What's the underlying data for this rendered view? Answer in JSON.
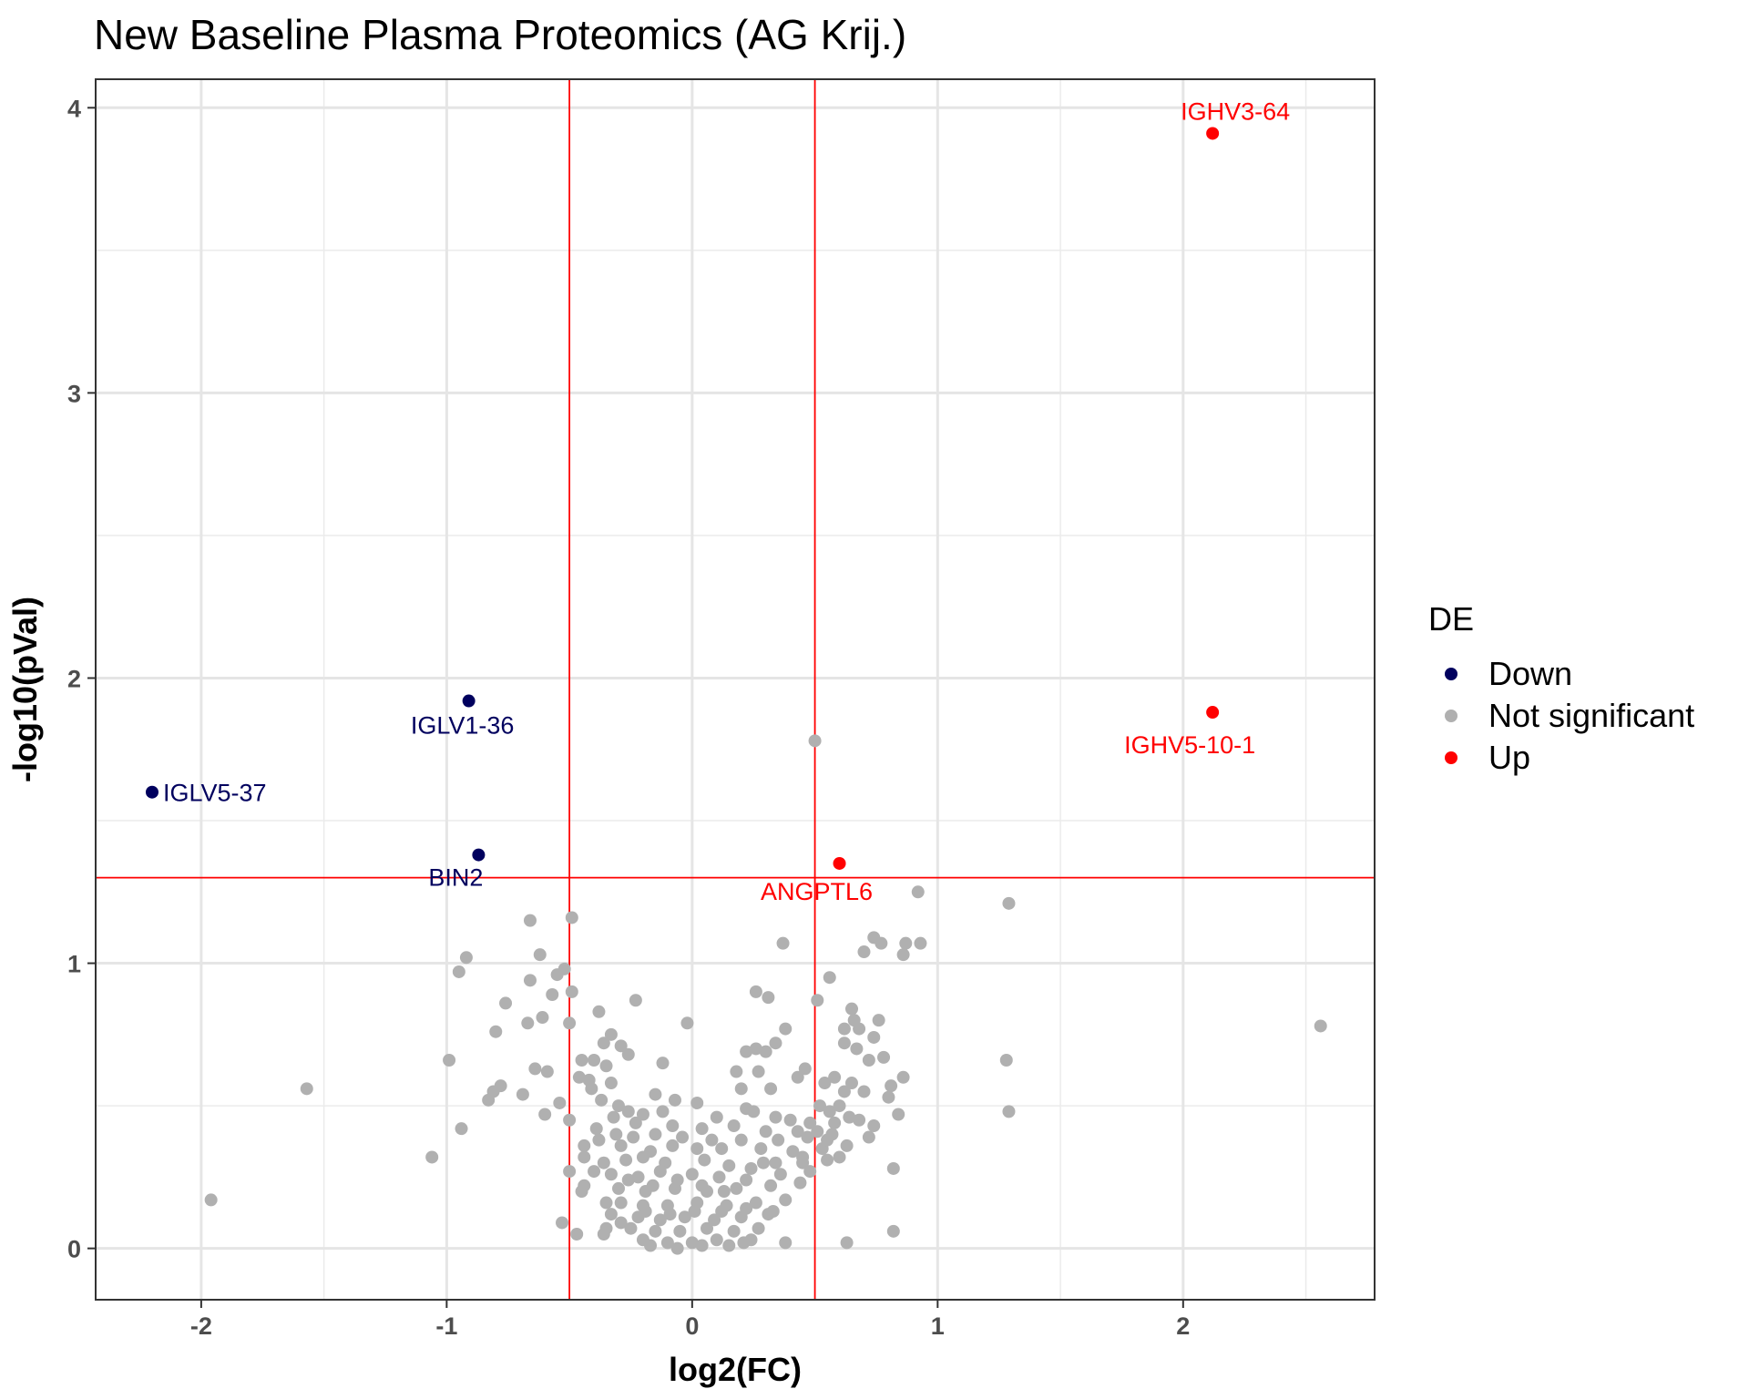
{
  "chart_data": {
    "type": "scatter",
    "title": "New Baseline Plasma Proteomics (AG Krij.)",
    "xlabel": "log2(FC)",
    "ylabel": "-log10(pVal)",
    "xlim": [
      -2.43,
      2.78
    ],
    "ylim": [
      -0.18,
      4.1
    ],
    "x_ticks": [
      -2,
      -1,
      0,
      1,
      2
    ],
    "y_ticks": [
      0,
      1,
      2,
      3,
      4
    ],
    "x_tick_labels": [
      "-2",
      "-1",
      "0",
      "1",
      "2"
    ],
    "y_tick_labels": [
      "0",
      "1",
      "2",
      "3",
      "4"
    ],
    "grid": true,
    "thresholds": {
      "x": [
        -0.5,
        0.5
      ],
      "y": 1.3,
      "color": "#ff0000"
    },
    "legend": {
      "title": "DE",
      "position": "right",
      "items": [
        {
          "label": "Down",
          "color": "#00005e"
        },
        {
          "label": "Not significant",
          "color": "#b0b0b0"
        },
        {
          "label": "Up",
          "color": "#ff0000"
        }
      ]
    },
    "series": [
      {
        "name": "Down",
        "color": "#00005e",
        "points": [
          {
            "x": -0.91,
            "y": 1.92,
            "label": "IGLV1-36"
          },
          {
            "x": -2.2,
            "y": 1.6,
            "label": "IGLV5-37"
          },
          {
            "x": -0.87,
            "y": 1.38,
            "label": "BIN2"
          }
        ]
      },
      {
        "name": "Up",
        "color": "#ff0000",
        "points": [
          {
            "x": 2.12,
            "y": 3.91,
            "label": "IGHV3-64"
          },
          {
            "x": 2.12,
            "y": 1.88,
            "label": "IGHV5-10-1"
          },
          {
            "x": 0.6,
            "y": 1.35,
            "label": "ANGPTL6"
          }
        ]
      },
      {
        "name": "Not significant",
        "color": "#b0b0b0",
        "points": [
          {
            "x": 0.5,
            "y": 1.78
          },
          {
            "x": 0.92,
            "y": 1.25
          },
          {
            "x": 1.29,
            "y": 1.21
          },
          {
            "x": -0.49,
            "y": 1.16
          },
          {
            "x": -0.66,
            "y": 1.15
          },
          {
            "x": 0.37,
            "y": 1.07
          },
          {
            "x": 0.74,
            "y": 1.09
          },
          {
            "x": 0.77,
            "y": 1.07
          },
          {
            "x": 0.7,
            "y": 1.04
          },
          {
            "x": 0.87,
            "y": 1.07
          },
          {
            "x": 0.93,
            "y": 1.07
          },
          {
            "x": 0.86,
            "y": 1.03
          },
          {
            "x": -0.92,
            "y": 1.02
          },
          {
            "x": -0.62,
            "y": 1.03
          },
          {
            "x": -0.95,
            "y": 0.97
          },
          {
            "x": -0.55,
            "y": 0.96
          },
          {
            "x": -0.52,
            "y": 0.98
          },
          {
            "x": -0.66,
            "y": 0.94
          },
          {
            "x": 0.56,
            "y": 0.95
          },
          {
            "x": -0.49,
            "y": 0.9
          },
          {
            "x": -0.57,
            "y": 0.89
          },
          {
            "x": 0.26,
            "y": 0.9
          },
          {
            "x": 0.31,
            "y": 0.88
          },
          {
            "x": 0.51,
            "y": 0.87
          },
          {
            "x": -0.76,
            "y": 0.86
          },
          {
            "x": -0.38,
            "y": 0.83
          },
          {
            "x": -0.23,
            "y": 0.87
          },
          {
            "x": 0.65,
            "y": 0.84
          },
          {
            "x": 2.56,
            "y": 0.78
          },
          {
            "x": -0.61,
            "y": 0.81
          },
          {
            "x": -0.67,
            "y": 0.79
          },
          {
            "x": -0.5,
            "y": 0.79
          },
          {
            "x": -0.8,
            "y": 0.76
          },
          {
            "x": -0.02,
            "y": 0.79
          },
          {
            "x": -0.36,
            "y": 0.72
          },
          {
            "x": -0.33,
            "y": 0.75
          },
          {
            "x": -0.29,
            "y": 0.71
          },
          {
            "x": 0.66,
            "y": 0.8
          },
          {
            "x": 0.76,
            "y": 0.8
          },
          {
            "x": 0.62,
            "y": 0.77
          },
          {
            "x": 0.68,
            "y": 0.77
          },
          {
            "x": 0.74,
            "y": 0.74
          },
          {
            "x": 0.38,
            "y": 0.77
          },
          {
            "x": 0.34,
            "y": 0.72
          },
          {
            "x": 0.22,
            "y": 0.69
          },
          {
            "x": 0.26,
            "y": 0.7
          },
          {
            "x": 0.3,
            "y": 0.69
          },
          {
            "x": -0.45,
            "y": 0.66
          },
          {
            "x": -0.4,
            "y": 0.66
          },
          {
            "x": -0.35,
            "y": 0.64
          },
          {
            "x": -0.26,
            "y": 0.68
          },
          {
            "x": -0.12,
            "y": 0.65
          },
          {
            "x": -0.64,
            "y": 0.63
          },
          {
            "x": -0.59,
            "y": 0.62
          },
          {
            "x": -0.99,
            "y": 0.66
          },
          {
            "x": 1.28,
            "y": 0.66
          },
          {
            "x": 0.62,
            "y": 0.72
          },
          {
            "x": 0.67,
            "y": 0.7
          },
          {
            "x": 0.72,
            "y": 0.66
          },
          {
            "x": 0.78,
            "y": 0.67
          },
          {
            "x": 0.46,
            "y": 0.63
          },
          {
            "x": 0.43,
            "y": 0.6
          },
          {
            "x": 0.18,
            "y": 0.62
          },
          {
            "x": 0.27,
            "y": 0.62
          },
          {
            "x": 0.86,
            "y": 0.6
          },
          {
            "x": -0.78,
            "y": 0.57
          },
          {
            "x": -0.81,
            "y": 0.55
          },
          {
            "x": -1.57,
            "y": 0.56
          },
          {
            "x": -0.42,
            "y": 0.59
          },
          {
            "x": -0.33,
            "y": 0.58
          },
          {
            "x": 0.65,
            "y": 0.58
          },
          {
            "x": 0.81,
            "y": 0.57
          },
          {
            "x": -0.69,
            "y": 0.54
          },
          {
            "x": -0.83,
            "y": 0.52
          },
          {
            "x": 0.2,
            "y": 0.56
          },
          {
            "x": 0.32,
            "y": 0.56
          },
          {
            "x": 0.62,
            "y": 0.55
          },
          {
            "x": 0.7,
            "y": 0.55
          },
          {
            "x": 0.8,
            "y": 0.53
          },
          {
            "x": -0.15,
            "y": 0.54
          },
          {
            "x": -0.07,
            "y": 0.52
          },
          {
            "x": 0.02,
            "y": 0.51
          },
          {
            "x": 1.29,
            "y": 0.48
          },
          {
            "x": 0.84,
            "y": 0.47
          },
          {
            "x": -0.54,
            "y": 0.51
          },
          {
            "x": -0.6,
            "y": 0.47
          },
          {
            "x": -0.5,
            "y": 0.45
          },
          {
            "x": -0.94,
            "y": 0.42
          },
          {
            "x": 0.25,
            "y": 0.48
          },
          {
            "x": 0.34,
            "y": 0.46
          },
          {
            "x": 0.74,
            "y": 0.43
          },
          {
            "x": 0.64,
            "y": 0.46
          },
          {
            "x": 0.68,
            "y": 0.45
          },
          {
            "x": -0.32,
            "y": 0.46
          },
          {
            "x": -0.23,
            "y": 0.44
          },
          {
            "x": -0.08,
            "y": 0.43
          },
          {
            "x": 0.04,
            "y": 0.42
          },
          {
            "x": 0.17,
            "y": 0.43
          },
          {
            "x": 0.3,
            "y": 0.41
          },
          {
            "x": 0.43,
            "y": 0.41
          },
          {
            "x": 0.72,
            "y": 0.39
          },
          {
            "x": -0.44,
            "y": 0.36
          },
          {
            "x": -0.38,
            "y": 0.38
          },
          {
            "x": -0.29,
            "y": 0.36
          },
          {
            "x": -0.17,
            "y": 0.34
          },
          {
            "x": -0.08,
            "y": 0.36
          },
          {
            "x": 0.02,
            "y": 0.35
          },
          {
            "x": 0.12,
            "y": 0.35
          },
          {
            "x": 0.28,
            "y": 0.35
          },
          {
            "x": 0.41,
            "y": 0.34
          },
          {
            "x": 0.53,
            "y": 0.35
          },
          {
            "x": 0.63,
            "y": 0.36
          },
          {
            "x": -1.06,
            "y": 0.32
          },
          {
            "x": -0.44,
            "y": 0.32
          },
          {
            "x": -0.36,
            "y": 0.3
          },
          {
            "x": -0.27,
            "y": 0.31
          },
          {
            "x": -0.2,
            "y": 0.32
          },
          {
            "x": -0.11,
            "y": 0.3
          },
          {
            "x": 0.05,
            "y": 0.31
          },
          {
            "x": 0.15,
            "y": 0.29
          },
          {
            "x": 0.29,
            "y": 0.3
          },
          {
            "x": 0.45,
            "y": 0.3
          },
          {
            "x": 0.55,
            "y": 0.31
          },
          {
            "x": 0.6,
            "y": 0.32
          },
          {
            "x": -0.5,
            "y": 0.27
          },
          {
            "x": -0.33,
            "y": 0.26
          },
          {
            "x": -0.22,
            "y": 0.25
          },
          {
            "x": -0.13,
            "y": 0.27
          },
          {
            "x": 0.0,
            "y": 0.26
          },
          {
            "x": 0.11,
            "y": 0.25
          },
          {
            "x": 0.22,
            "y": 0.24
          },
          {
            "x": 0.36,
            "y": 0.26
          },
          {
            "x": 0.48,
            "y": 0.27
          },
          {
            "x": 0.82,
            "y": 0.28
          },
          {
            "x": -0.44,
            "y": 0.22
          },
          {
            "x": -0.3,
            "y": 0.21
          },
          {
            "x": -0.19,
            "y": 0.2
          },
          {
            "x": -0.07,
            "y": 0.21
          },
          {
            "x": 0.06,
            "y": 0.2
          },
          {
            "x": 0.18,
            "y": 0.21
          },
          {
            "x": 0.32,
            "y": 0.22
          },
          {
            "x": 0.44,
            "y": 0.23
          },
          {
            "x": -0.45,
            "y": 0.2
          },
          {
            "x": -0.29,
            "y": 0.16
          },
          {
            "x": -0.2,
            "y": 0.15
          },
          {
            "x": -0.1,
            "y": 0.15
          },
          {
            "x": 0.02,
            "y": 0.16
          },
          {
            "x": 0.14,
            "y": 0.15
          },
          {
            "x": 0.26,
            "y": 0.16
          },
          {
            "x": 0.38,
            "y": 0.17
          },
          {
            "x": -1.96,
            "y": 0.17
          },
          {
            "x": -0.33,
            "y": 0.12
          },
          {
            "x": -0.22,
            "y": 0.11
          },
          {
            "x": -0.13,
            "y": 0.1
          },
          {
            "x": -0.03,
            "y": 0.11
          },
          {
            "x": 0.09,
            "y": 0.1
          },
          {
            "x": 0.2,
            "y": 0.11
          },
          {
            "x": 0.31,
            "y": 0.12
          },
          {
            "x": -0.53,
            "y": 0.09
          },
          {
            "x": -0.35,
            "y": 0.07
          },
          {
            "x": -0.25,
            "y": 0.07
          },
          {
            "x": -0.15,
            "y": 0.06
          },
          {
            "x": -0.05,
            "y": 0.06
          },
          {
            "x": 0.06,
            "y": 0.07
          },
          {
            "x": 0.17,
            "y": 0.06
          },
          {
            "x": 0.27,
            "y": 0.07
          },
          {
            "x": -0.47,
            "y": 0.05
          },
          {
            "x": -0.36,
            "y": 0.05
          },
          {
            "x": 0.82,
            "y": 0.06
          },
          {
            "x": -0.2,
            "y": 0.03
          },
          {
            "x": -0.1,
            "y": 0.02
          },
          {
            "x": 0.0,
            "y": 0.02
          },
          {
            "x": 0.1,
            "y": 0.03
          },
          {
            "x": 0.21,
            "y": 0.02
          },
          {
            "x": 0.38,
            "y": 0.02
          },
          {
            "x": 0.63,
            "y": 0.02
          },
          {
            "x": -0.17,
            "y": 0.01
          },
          {
            "x": -0.06,
            "y": 0.0
          },
          {
            "x": 0.04,
            "y": 0.01
          },
          {
            "x": 0.15,
            "y": 0.01
          },
          {
            "x": 0.24,
            "y": 0.03
          },
          {
            "x": -0.39,
            "y": 0.42
          },
          {
            "x": -0.31,
            "y": 0.4
          },
          {
            "x": -0.24,
            "y": 0.39
          },
          {
            "x": -0.15,
            "y": 0.4
          },
          {
            "x": -0.04,
            "y": 0.39
          },
          {
            "x": 0.08,
            "y": 0.38
          },
          {
            "x": 0.2,
            "y": 0.38
          },
          {
            "x": 0.35,
            "y": 0.38
          },
          {
            "x": 0.47,
            "y": 0.39
          },
          {
            "x": 0.57,
            "y": 0.4
          },
          {
            "x": 0.52,
            "y": 0.5
          },
          {
            "x": 0.56,
            "y": 0.48
          },
          {
            "x": 0.6,
            "y": 0.5
          },
          {
            "x": 0.54,
            "y": 0.58
          },
          {
            "x": 0.58,
            "y": 0.6
          },
          {
            "x": -0.46,
            "y": 0.6
          },
          {
            "x": -0.41,
            "y": 0.56
          },
          {
            "x": -0.37,
            "y": 0.52
          },
          {
            "x": -0.3,
            "y": 0.5
          },
          {
            "x": -0.26,
            "y": 0.48
          },
          {
            "x": -0.2,
            "y": 0.47
          },
          {
            "x": -0.12,
            "y": 0.48
          },
          {
            "x": 0.1,
            "y": 0.46
          },
          {
            "x": 0.22,
            "y": 0.49
          },
          {
            "x": 0.4,
            "y": 0.45
          },
          {
            "x": 0.48,
            "y": 0.44
          },
          {
            "x": 0.51,
            "y": 0.41
          },
          {
            "x": 0.55,
            "y": 0.38
          },
          {
            "x": 0.58,
            "y": 0.44
          },
          {
            "x": -0.35,
            "y": 0.16
          },
          {
            "x": -0.26,
            "y": 0.24
          },
          {
            "x": -0.16,
            "y": 0.22
          },
          {
            "x": -0.06,
            "y": 0.24
          },
          {
            "x": 0.04,
            "y": 0.22
          },
          {
            "x": 0.13,
            "y": 0.2
          },
          {
            "x": 0.24,
            "y": 0.28
          },
          {
            "x": 0.34,
            "y": 0.3
          },
          {
            "x": -0.4,
            "y": 0.27
          },
          {
            "x": 0.45,
            "y": 0.32
          },
          {
            "x": -0.29,
            "y": 0.09
          },
          {
            "x": -0.19,
            "y": 0.13
          },
          {
            "x": -0.09,
            "y": 0.12
          },
          {
            "x": 0.01,
            "y": 0.13
          },
          {
            "x": 0.12,
            "y": 0.13
          },
          {
            "x": 0.22,
            "y": 0.14
          },
          {
            "x": 0.33,
            "y": 0.13
          }
        ]
      }
    ]
  }
}
